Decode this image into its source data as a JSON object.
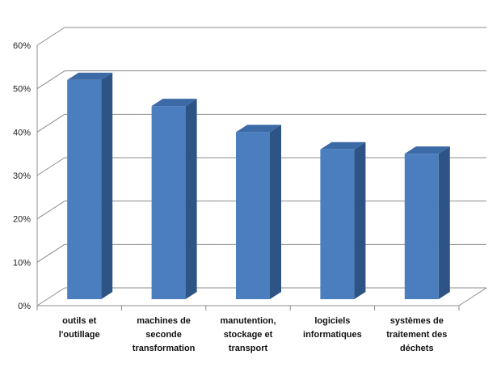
{
  "chart_data": {
    "type": "bar",
    "title": "",
    "xlabel": "",
    "ylabel": "",
    "categories": [
      [
        "outils et",
        "l'outillage"
      ],
      [
        "machines de",
        "seconde",
        "transformation"
      ],
      [
        "manutention,",
        "stockage et",
        "transport"
      ],
      [
        "logiciels",
        "informatiques"
      ],
      [
        "systèmes de",
        "traitement des",
        "déchets"
      ]
    ],
    "values": [
      52,
      46,
      40,
      36,
      35
    ],
    "ylim": [
      0,
      60
    ],
    "yticks": [
      "0%",
      "10%",
      "20%",
      "30%",
      "40%",
      "50%",
      "60%"
    ],
    "grid": true,
    "legend": "none",
    "colors": {
      "bar_front": "#4a7ebf",
      "bar_side": "#2d5484",
      "bar_top": "#3b6aa6",
      "grid": "#8c8c8c"
    }
  }
}
